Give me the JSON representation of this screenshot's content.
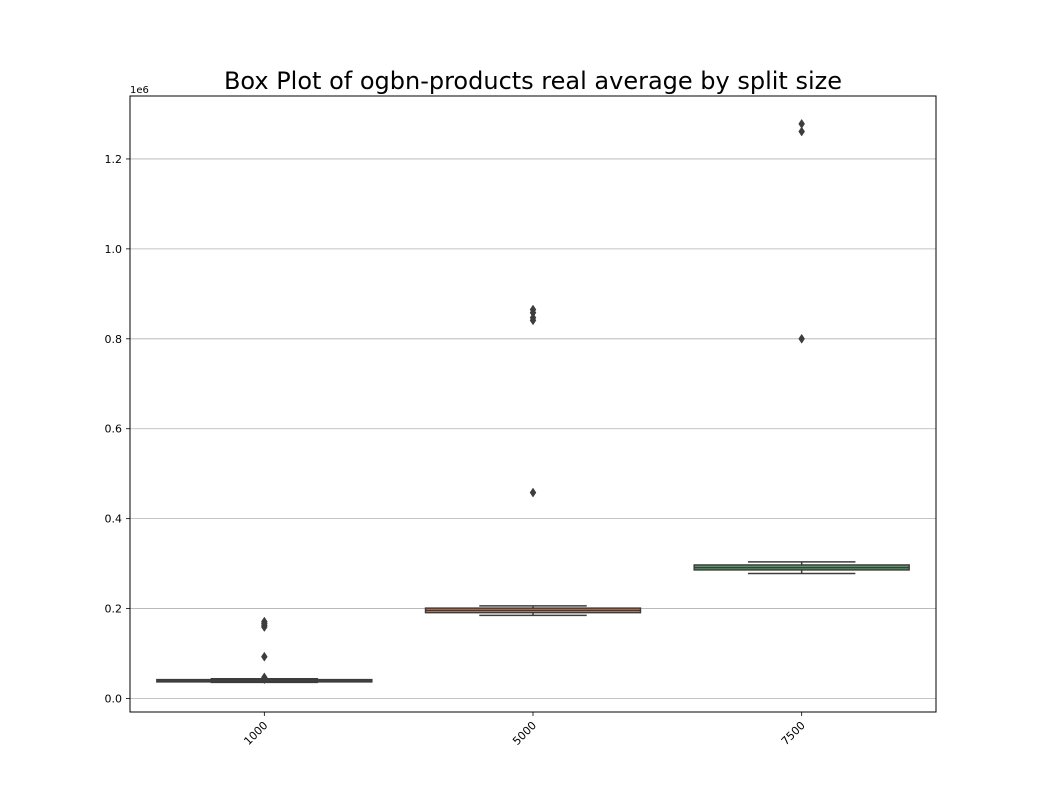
{
  "chart_data": {
    "type": "box",
    "title": "Box Plot of ogbn-products real average by split size",
    "xlabel": "",
    "ylabel": "",
    "y_offset_label": "1e6",
    "y_scale": 1000000,
    "ylim": [
      -30000,
      1340000
    ],
    "yticks": [
      0,
      200000,
      400000,
      600000,
      800000,
      1000000,
      1200000
    ],
    "ytick_labels": [
      "0.0",
      "0.2",
      "0.4",
      "0.6",
      "0.8",
      "1.0",
      "1.2"
    ],
    "grid": "horizontal",
    "categories": [
      "1000",
      "5000",
      "7500"
    ],
    "boxes": [
      {
        "category": "1000",
        "whisker_low": 36000,
        "q1": 37000,
        "median": 39000,
        "q3": 42000,
        "whisker_high": 44000,
        "outliers": [
          159000,
          163000,
          167000,
          171000,
          93000,
          47000,
          43000
        ],
        "color": "#4c72b0"
      },
      {
        "category": "5000",
        "whisker_low": 185000,
        "q1": 191000,
        "median": 196000,
        "q3": 201000,
        "whisker_high": 206000,
        "outliers": [
          841000,
          847000,
          858000,
          865000,
          458000
        ],
        "color": "#dd8452"
      },
      {
        "category": "7500",
        "whisker_low": 278000,
        "q1": 286000,
        "median": 291000,
        "q3": 297000,
        "whisker_high": 304000,
        "outliers": [
          1261000,
          1278000,
          800000
        ],
        "color": "#55a868"
      }
    ]
  }
}
